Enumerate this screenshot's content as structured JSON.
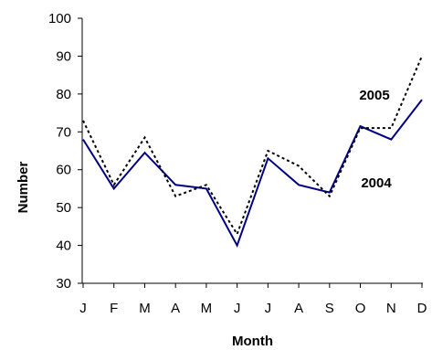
{
  "chart_data": {
    "type": "line",
    "xlabel": "Month",
    "ylabel": "Number",
    "categories": [
      "J",
      "F",
      "M",
      "A",
      "M",
      "J",
      "J",
      "A",
      "S",
      "O",
      "N",
      "D"
    ],
    "ylim": [
      30,
      100
    ],
    "yticks": [
      30,
      40,
      50,
      60,
      70,
      80,
      90,
      100
    ],
    "grid": false,
    "series": [
      {
        "name": "2004",
        "color": "#000080",
        "line_style": "solid",
        "values": [
          68,
          55,
          64.5,
          56,
          55,
          40,
          63,
          56,
          54,
          71.5,
          68,
          78.5
        ]
      },
      {
        "name": "2005",
        "color": "#000000",
        "line_style": "dotted",
        "values": [
          73,
          56,
          68.5,
          53,
          56,
          43,
          65,
          61,
          53,
          71,
          71,
          90
        ]
      }
    ]
  }
}
